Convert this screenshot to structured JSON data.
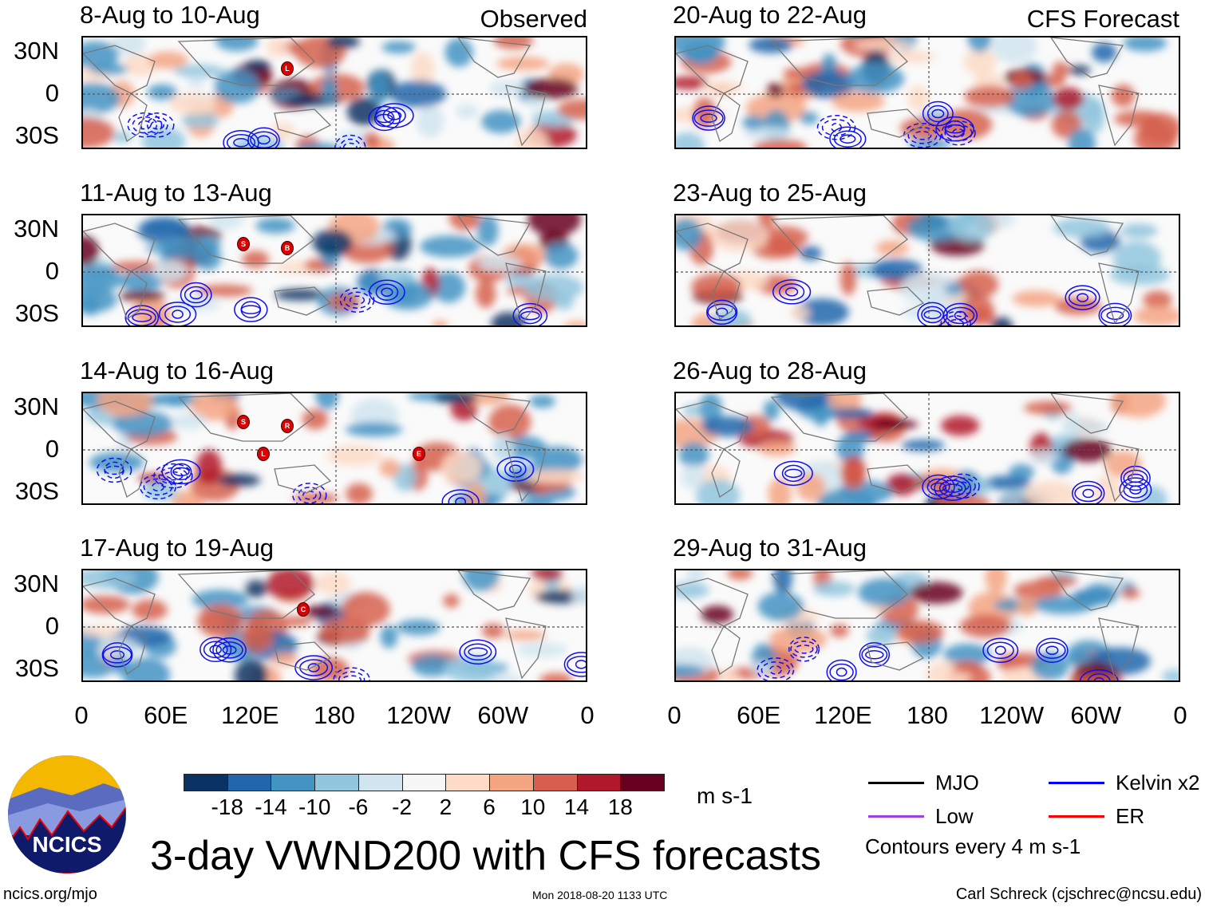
{
  "figure": {
    "title": "3-day VWND200 with CFS forecasts",
    "observed_label": "Observed",
    "forecast_label": "CFS Forecast",
    "units": "m s-1",
    "contour_note": "Contours every 4 m s-1",
    "source_url": "ncics.org/mjo",
    "timestamp": "Mon 2018-08-20 1133 UTC",
    "author": "Carl Schreck (cjschrec@ncsu.edu)",
    "logo_text": "NCICS"
  },
  "lat_labels": [
    "30N",
    "0",
    "30S"
  ],
  "lon_labels": [
    "0",
    "60E",
    "120E",
    "180",
    "120W",
    "60W",
    "0"
  ],
  "panels_observed": [
    {
      "title": "8-Aug to 10-Aug",
      "storms": [
        "L"
      ]
    },
    {
      "title": "11-Aug to 13-Aug",
      "storms": [
        "B",
        "S"
      ]
    },
    {
      "title": "14-Aug to 16-Aug",
      "storms": [
        "R",
        "S",
        "L",
        "E"
      ]
    },
    {
      "title": "17-Aug to 19-Aug",
      "storms": [
        "C"
      ]
    }
  ],
  "panels_forecast": [
    {
      "title": "20-Aug to 22-Aug"
    },
    {
      "title": "23-Aug to 25-Aug"
    },
    {
      "title": "26-Aug to 28-Aug"
    },
    {
      "title": "29-Aug to 31-Aug"
    }
  ],
  "colorbar": {
    "labels": [
      "-18",
      "-14",
      "-10",
      "-6",
      "-2",
      "2",
      "6",
      "10",
      "14",
      "18"
    ],
    "colors": [
      "#0a3263",
      "#2166ac",
      "#4393c3",
      "#92c5de",
      "#d1e5f0",
      "#f7f7f7",
      "#fddbc7",
      "#f4a582",
      "#d6604d",
      "#b2182b",
      "#67001f"
    ]
  },
  "legend": [
    {
      "label": "MJO",
      "color": "#000000"
    },
    {
      "label": "Kelvin x2",
      "color": "#0000ff"
    },
    {
      "label": "Low",
      "color": "#a040e0"
    },
    {
      "label": "ER",
      "color": "#ff0000"
    }
  ]
}
